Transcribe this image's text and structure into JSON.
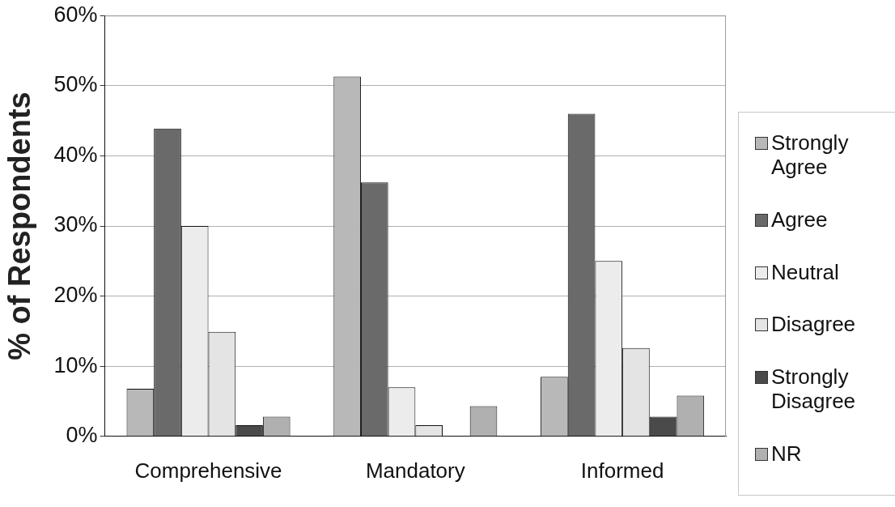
{
  "chart_data": {
    "type": "bar",
    "ylabel": "% of Respondents",
    "categories": [
      "Comprehensive",
      "Mandatory",
      "Informed"
    ],
    "series": [
      {
        "name": "Strongly Agree",
        "color": "#b8b8b8",
        "values": [
          6.8,
          51.3,
          8.5
        ]
      },
      {
        "name": "Agree",
        "color": "#6a6a6a",
        "values": [
          43.9,
          36.2,
          46.0
        ]
      },
      {
        "name": "Neutral",
        "color": "#ececec",
        "values": [
          30.0,
          7.0,
          25.0
        ]
      },
      {
        "name": "Disagree",
        "color": "#e4e4e4",
        "values": [
          14.9,
          1.6,
          12.6
        ]
      },
      {
        "name": "Strongly Disagree",
        "color": "#4a4a4a",
        "values": [
          1.6,
          0,
          2.8
        ]
      },
      {
        "name": "NR",
        "color": "#b0b0b0",
        "values": [
          2.8,
          4.3,
          5.8
        ]
      }
    ],
    "ylim": [
      0,
      60
    ],
    "yticks": [
      {
        "value": 0,
        "label": "0%"
      },
      {
        "value": 10,
        "label": "10%"
      },
      {
        "value": 20,
        "label": "20%"
      },
      {
        "value": 30,
        "label": "30%"
      },
      {
        "value": 40,
        "label": "40%"
      },
      {
        "value": 50,
        "label": "50%"
      },
      {
        "value": 60,
        "label": "60%"
      }
    ],
    "grid": "y",
    "legend": "right"
  }
}
